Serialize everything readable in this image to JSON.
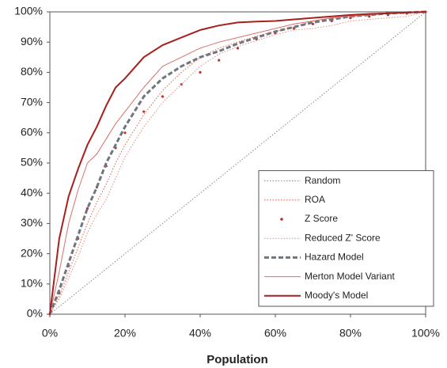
{
  "chart_data": {
    "type": "line",
    "x_label": "Population",
    "x": [
      0,
      2.5,
      5,
      7.5,
      10,
      12.5,
      15,
      17.5,
      20,
      25,
      30,
      35,
      40,
      45,
      50,
      55,
      60,
      65,
      70,
      75,
      80,
      85,
      90,
      95,
      100
    ],
    "series": [
      {
        "name": "Random",
        "color": "#888888",
        "line_style": "dotted",
        "values": [
          0,
          2.5,
          5,
          7.5,
          10,
          12.5,
          15,
          17.5,
          20,
          25,
          30,
          35,
          40,
          45,
          50,
          55,
          60,
          65,
          70,
          75,
          80,
          85,
          90,
          95,
          100
        ]
      },
      {
        "name": "ROA",
        "color": "#e0604a",
        "line_style": "dotted",
        "values": [
          0,
          6,
          14,
          22,
          30,
          37,
          43,
          50,
          56,
          66,
          74,
          80,
          85,
          88,
          90,
          92,
          93.5,
          95,
          97,
          98,
          98.5,
          99,
          99.5,
          99.8,
          100
        ]
      },
      {
        "name": "Z Score",
        "color": "#c0302a",
        "line_style": "dots",
        "values": [
          0,
          7,
          16,
          25,
          35,
          42,
          49,
          55,
          60,
          67,
          72,
          76,
          80,
          84,
          88,
          91,
          93,
          94.5,
          96,
          97,
          98,
          98.5,
          99,
          99.5,
          100
        ]
      },
      {
        "name": "Reduced Z' Score",
        "color": "#e88a80",
        "line_style": "dotted",
        "values": [
          0,
          5,
          12,
          19,
          27,
          33,
          38,
          45,
          52,
          62,
          70,
          76,
          82,
          86,
          88.5,
          90.5,
          92.5,
          94,
          94.5,
          95.5,
          97,
          97.5,
          98,
          98.5,
          100
        ]
      },
      {
        "name": "Hazard Model",
        "color": "#6e7680",
        "line_style": "dashed",
        "values": [
          0,
          8,
          17,
          26,
          35,
          42,
          50,
          56,
          62,
          72,
          78,
          82,
          85,
          87,
          89.5,
          91.5,
          93.5,
          95,
          96.5,
          97.5,
          98.5,
          99,
          99.5,
          99.8,
          100
        ]
      },
      {
        "name": "Merton Model Variant",
        "color": "#d9706a",
        "line_style": "solid",
        "values": [
          0,
          14,
          30,
          41,
          50,
          53,
          58,
          63,
          67,
          75,
          82,
          85,
          88,
          90,
          91.5,
          93,
          94.5,
          96,
          97,
          98,
          98.5,
          99,
          99.5,
          99.7,
          100
        ]
      },
      {
        "name": "Moody's Model",
        "color": "#a8201c",
        "line_style": "bold",
        "values": [
          0,
          25,
          39,
          48,
          56,
          62,
          69,
          75,
          78,
          85,
          89,
          91.5,
          94,
          95.5,
          96.5,
          96.8,
          97,
          97.5,
          98,
          98.5,
          99,
          99.3,
          99.5,
          99.8,
          100
        ]
      }
    ],
    "xlim": [
      0,
      100
    ],
    "ylim": [
      0,
      100
    ],
    "xticks": [
      {
        "value": 0,
        "label": "0%"
      },
      {
        "value": 20,
        "label": "20%"
      },
      {
        "value": 40,
        "label": "40%"
      },
      {
        "value": 60,
        "label": "60%"
      },
      {
        "value": 80,
        "label": "80%"
      },
      {
        "value": 100,
        "label": "100%"
      }
    ],
    "yticks": [
      {
        "value": 0,
        "label": "0%"
      },
      {
        "value": 10,
        "label": "10%"
      },
      {
        "value": 20,
        "label": "20%"
      },
      {
        "value": 30,
        "label": "30%"
      },
      {
        "value": 40,
        "label": "40%"
      },
      {
        "value": 50,
        "label": "50%"
      },
      {
        "value": 60,
        "label": "60%"
      },
      {
        "value": 70,
        "label": "70%"
      },
      {
        "value": 80,
        "label": "80%"
      },
      {
        "value": 90,
        "label": "90%"
      },
      {
        "value": 100,
        "label": "100%"
      }
    ],
    "legend": "lower-right"
  }
}
